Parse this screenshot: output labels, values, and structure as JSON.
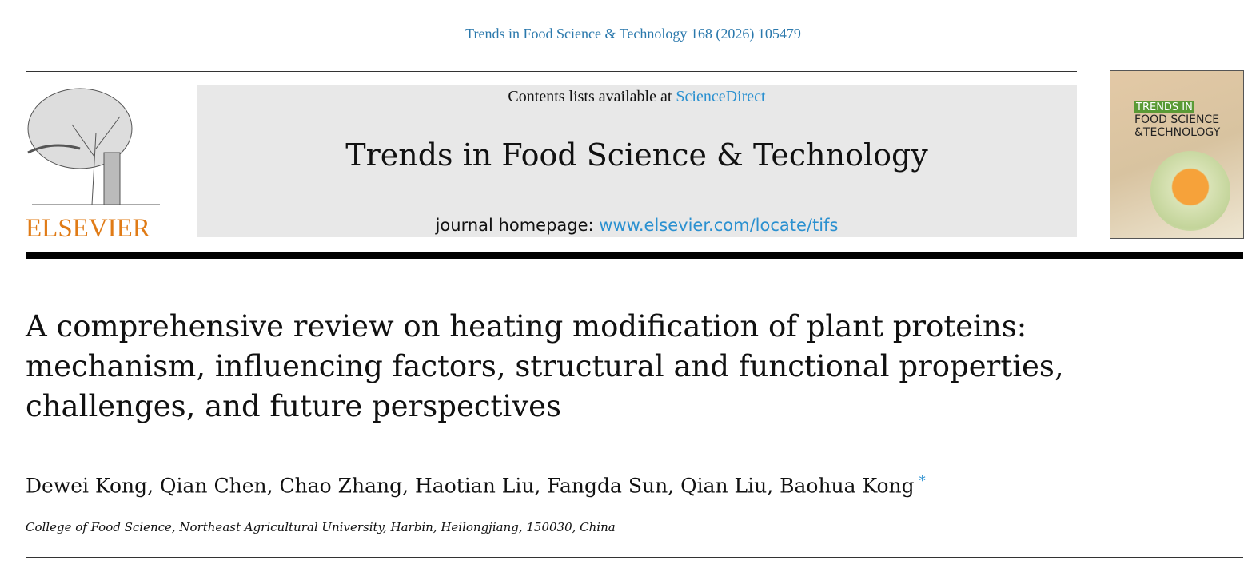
{
  "citation": "Trends in Food Science & Technology 168 (2026) 105479",
  "publisher": {
    "logo_text": "ELSEVIER"
  },
  "banner": {
    "contents_prefix": "Contents lists available at ",
    "contents_link": "ScienceDirect",
    "journal_title": "Trends in Food Science & Technology",
    "homepage_prefix": "journal homepage: ",
    "homepage_link": "www.elsevier.com/locate/tifs"
  },
  "cover": {
    "line1": "TRENDS IN",
    "line2": "FOOD SCIENCE",
    "line3": "&TECHNOLOGY"
  },
  "article": {
    "title_lines": [
      "A comprehensive review on heating modification of plant proteins:",
      "mechanism, influencing factors, structural and functional properties,",
      "challenges, and future perspectives"
    ],
    "authors": "Dewei Kong, Qian Chen, Chao Zhang, Haotian Liu, Fangda Sun, Qian Liu, Baohua Kong",
    "corresponding_mark": "*",
    "affiliation": "College of Food Science, Northeast Agricultural University, Harbin, Heilongjiang, 150030, China"
  },
  "colors": {
    "link": "#2a90d0",
    "elsevier": "#e07b16",
    "banner_bg": "#e8e8e8"
  }
}
